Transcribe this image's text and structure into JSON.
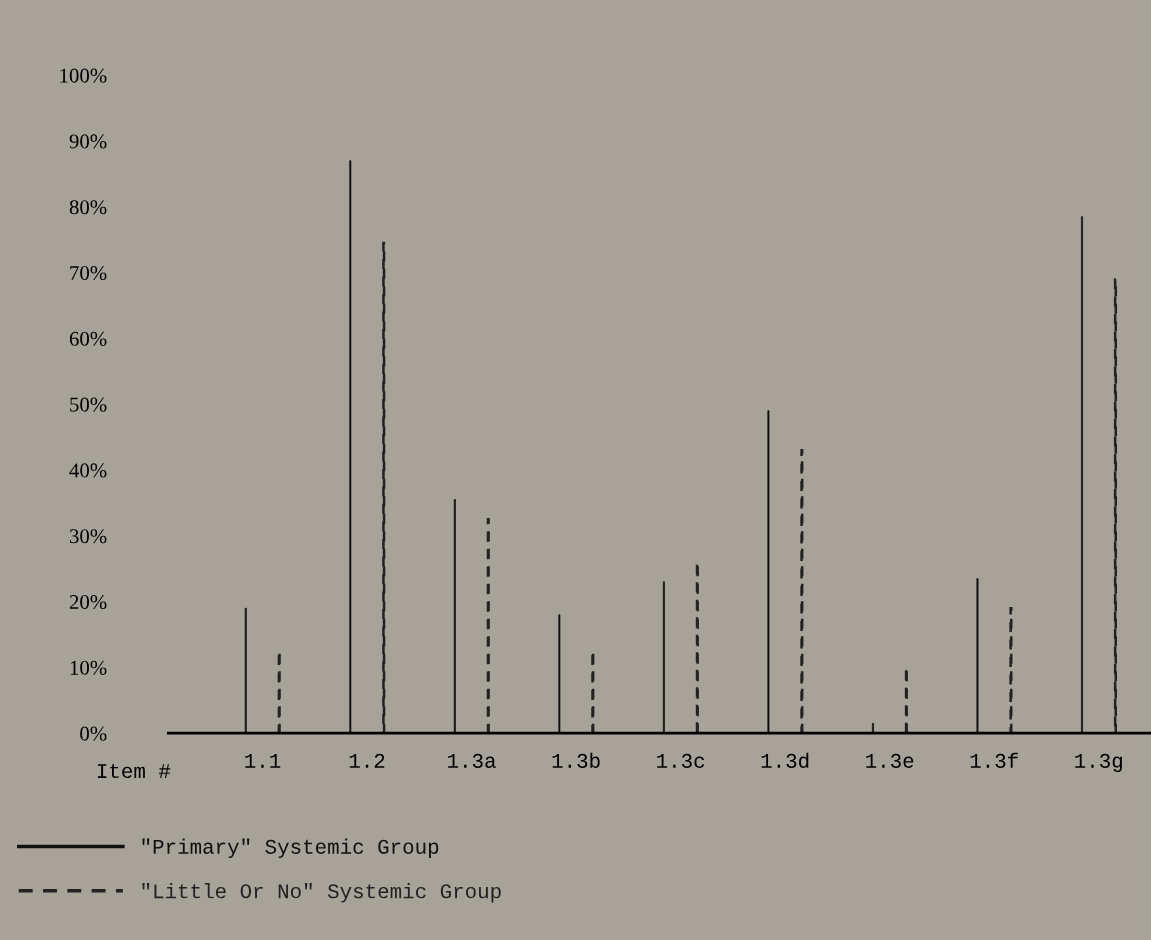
{
  "chart_data": {
    "type": "bar",
    "xlabel": "Item #",
    "categories": [
      "1.1",
      "1.2",
      "1.3a",
      "1.3b",
      "1.3c",
      "1.3d",
      "1.3e",
      "1.3f",
      "1.3g"
    ],
    "series": [
      {
        "name": "\"Primary\" Systemic Group",
        "color": "#111111",
        "line_style": "solid",
        "values": [
          19,
          87,
          35.5,
          18,
          23,
          49,
          1.5,
          23.5,
          78.5
        ]
      },
      {
        "name": "\"Little Or No\" Systemic Group",
        "color": "#222222",
        "line_style": "dashed",
        "values": [
          12.5,
          74.5,
          32.5,
          12.5,
          26,
          43,
          10,
          19,
          69
        ]
      }
    ],
    "ylim": [
      0,
      100
    ],
    "yticks": [
      {
        "value": 0,
        "label": "0%"
      },
      {
        "value": 10,
        "label": "10%"
      },
      {
        "value": 20,
        "label": "20%"
      },
      {
        "value": 30,
        "label": "30%"
      },
      {
        "value": 40,
        "label": "40%"
      },
      {
        "value": 50,
        "label": "50%"
      },
      {
        "value": 60,
        "label": "60%"
      },
      {
        "value": 70,
        "label": "70%"
      },
      {
        "value": 80,
        "label": "80%"
      },
      {
        "value": 90,
        "label": "90%"
      },
      {
        "value": 100,
        "label": "100%"
      }
    ],
    "grid": false,
    "legend": "bottom left"
  }
}
